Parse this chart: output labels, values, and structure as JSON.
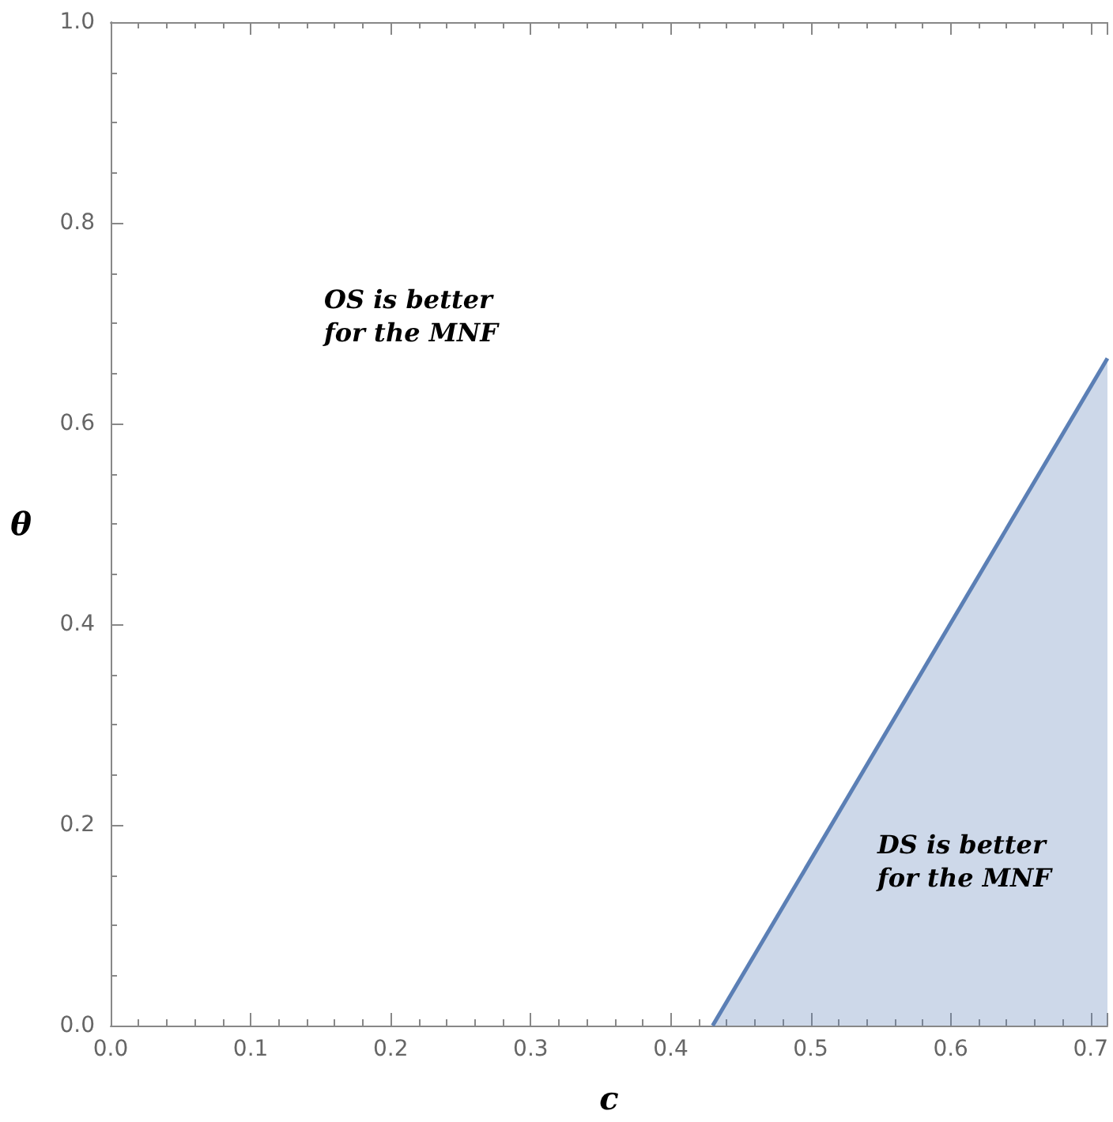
{
  "chart_data": {
    "type": "area",
    "xlabel": "c",
    "ylabel": "θ",
    "x": [
      0.43,
      0.712
    ],
    "series": [
      {
        "color": "#5b7fb5",
        "values": [
          0,
          0.665
        ]
      }
    ],
    "xlim": [
      0,
      0.712
    ],
    "xticks": [
      {
        "value": 0,
        "label": "0.0"
      },
      0.1,
      0.2,
      0.3,
      0.4,
      0.5,
      0.6,
      0.7
    ],
    "ylim": [
      0,
      1
    ],
    "yticks": [
      {
        "value": 0,
        "label": "0.0"
      },
      0.2,
      0.4,
      0.6,
      0.8,
      {
        "value": 1,
        "label": "1.0"
      }
    ],
    "grid": false,
    "marker": "none",
    "line_style": "solid",
    "annotations": [
      "OS is better\nfor the MNF",
      "DS is better\nfor the MNF"
    ]
  }
}
